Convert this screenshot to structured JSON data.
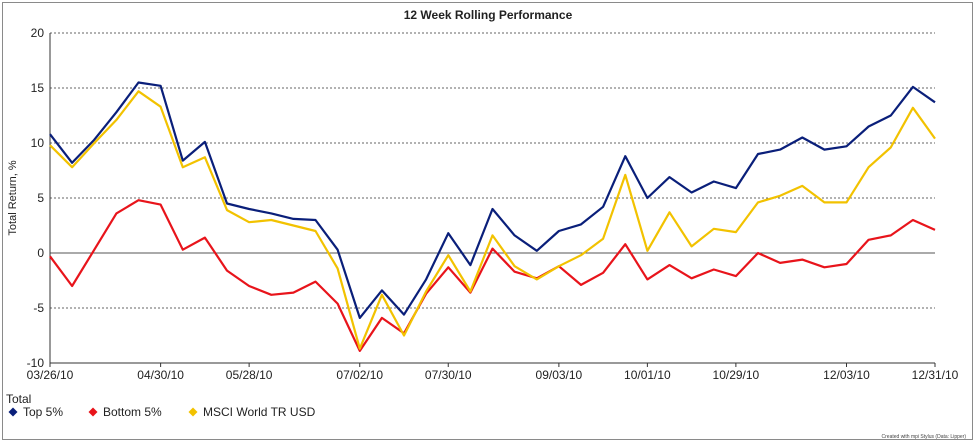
{
  "chart_data": {
    "type": "line",
    "title": "12 Week Rolling Performance",
    "xlabel": "",
    "ylabel": "Total Return, %",
    "ylim": [
      -10,
      20
    ],
    "yticks": [
      20,
      15,
      10,
      5,
      0,
      -5,
      -10
    ],
    "xtick_labels": [
      "03/26/10",
      "04/30/10",
      "05/28/10",
      "07/02/10",
      "07/30/10",
      "09/03/10",
      "10/01/10",
      "10/29/10",
      "12/03/10",
      "12/31/10"
    ],
    "xtick_index": [
      0,
      5,
      9,
      14,
      18,
      23,
      27,
      31,
      36,
      40
    ],
    "grid": "horizontal dashed",
    "legend_title": "Total",
    "legend_placement": "bottom-left",
    "series": [
      {
        "name": "Top 5%",
        "color": "#0a1f7a",
        "values": [
          10.8,
          8.2,
          10.3,
          12.8,
          15.5,
          15.2,
          8.4,
          10.1,
          4.5,
          4.0,
          3.6,
          3.1,
          3.0,
          0.3,
          -5.9,
          -3.4,
          -5.6,
          -2.4,
          1.8,
          -1.1,
          4.0,
          1.6,
          0.2,
          2.0,
          2.6,
          4.2,
          8.8,
          5.0,
          6.9,
          5.5,
          6.5,
          5.9,
          9.0,
          9.4,
          10.5,
          9.4,
          9.7,
          11.5,
          12.5,
          15.1,
          13.7
        ]
      },
      {
        "name": "Bottom 5%",
        "color": "#e8141b",
        "values": [
          -0.3,
          -3.0,
          0.3,
          3.6,
          4.8,
          4.4,
          0.3,
          1.4,
          -1.6,
          -3.0,
          -3.8,
          -3.6,
          -2.6,
          -4.6,
          -8.9,
          -5.9,
          -7.3,
          -3.7,
          -1.3,
          -3.6,
          0.4,
          -1.7,
          -2.3,
          -1.2,
          -2.9,
          -1.8,
          0.8,
          -2.4,
          -1.1,
          -2.3,
          -1.5,
          -2.1,
          0.0,
          -0.9,
          -0.6,
          -1.3,
          -1.0,
          1.2,
          1.6,
          3.0,
          2.1
        ]
      },
      {
        "name": "MSCI World TR USD",
        "color": "#f2c200",
        "values": [
          9.8,
          7.8,
          10.0,
          12.1,
          14.7,
          13.3,
          7.8,
          8.7,
          3.9,
          2.8,
          3.0,
          2.5,
          2.0,
          -1.4,
          -8.7,
          -3.8,
          -7.5,
          -3.5,
          -0.2,
          -3.5,
          1.6,
          -1.2,
          -2.4,
          -1.2,
          -0.2,
          1.3,
          7.1,
          0.2,
          3.7,
          0.6,
          2.2,
          1.9,
          4.6,
          5.2,
          6.1,
          4.6,
          4.6,
          7.8,
          9.6,
          13.2,
          10.4
        ]
      }
    ]
  },
  "footer": {
    "credit": "Created with mpi Stylus (Data: Lipper)"
  }
}
